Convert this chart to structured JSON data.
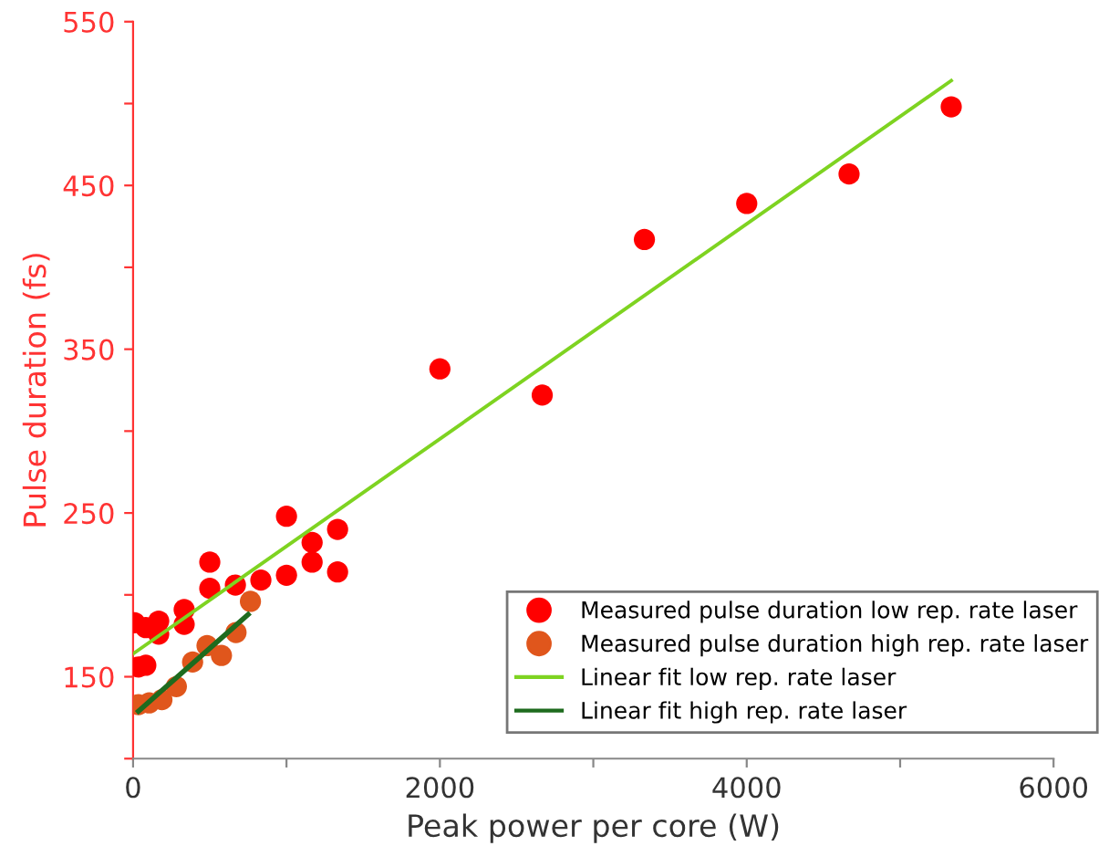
{
  "chart_data": {
    "type": "scatter",
    "xlabel": "Peak power per core (W)",
    "ylabel": "Pulse duration (fs)",
    "xlim": [
      0,
      6000
    ],
    "ylim": [
      100,
      550
    ],
    "xticks": [
      0,
      {
        "value": 1000,
        "label": null
      },
      2000,
      {
        "value": 3000,
        "label": null
      },
      4000,
      {
        "value": 5000,
        "label": null
      },
      6000
    ],
    "yticks": [
      {
        "value": 100,
        "label": null
      },
      150,
      {
        "value": 200,
        "label": null
      },
      250,
      {
        "value": 300,
        "label": null
      },
      350,
      {
        "value": 400,
        "label": null
      },
      450,
      {
        "value": 500,
        "label": null
      },
      550
    ],
    "grid": false,
    "legend": "bottom right",
    "marker": "circle",
    "series": [
      {
        "name": "Measured pulse duration low rep. rate laser",
        "color": "#ff0000",
        "x": [
          10,
          35,
          83,
          83,
          167,
          167,
          333,
          333,
          500,
          500,
          667,
          833,
          1000,
          1000,
          1167,
          1167,
          1333,
          1333,
          2000,
          2667,
          3333,
          4000,
          4667,
          5333
        ],
        "values": [
          183,
          156,
          180,
          157,
          184,
          176,
          191,
          182,
          220,
          204,
          206,
          209,
          248,
          212,
          232,
          220,
          240,
          214,
          338,
          322,
          417,
          439,
          457,
          498
        ]
      },
      {
        "name": "Measured pulse duration high rep. rate laser",
        "color": "#e0561c",
        "x": [
          35,
          105,
          188,
          282,
          388,
          482,
          576,
          671,
          765
        ],
        "values": [
          133,
          134,
          136,
          144,
          159,
          169,
          163,
          177,
          196
        ]
      },
      {
        "name": "Linear fit low rep. rate laser",
        "type": "line",
        "color": "#7ed321",
        "marker": "none",
        "line_style": "solid",
        "x": [
          0,
          5333
        ],
        "values": [
          164,
          514
        ]
      },
      {
        "name": "Linear fit high rep. rate laser",
        "type": "line",
        "color": "#1e6b1e",
        "marker": "none",
        "line_style": "solid",
        "x": [
          35,
          750
        ],
        "values": [
          129,
          188
        ]
      }
    ]
  }
}
